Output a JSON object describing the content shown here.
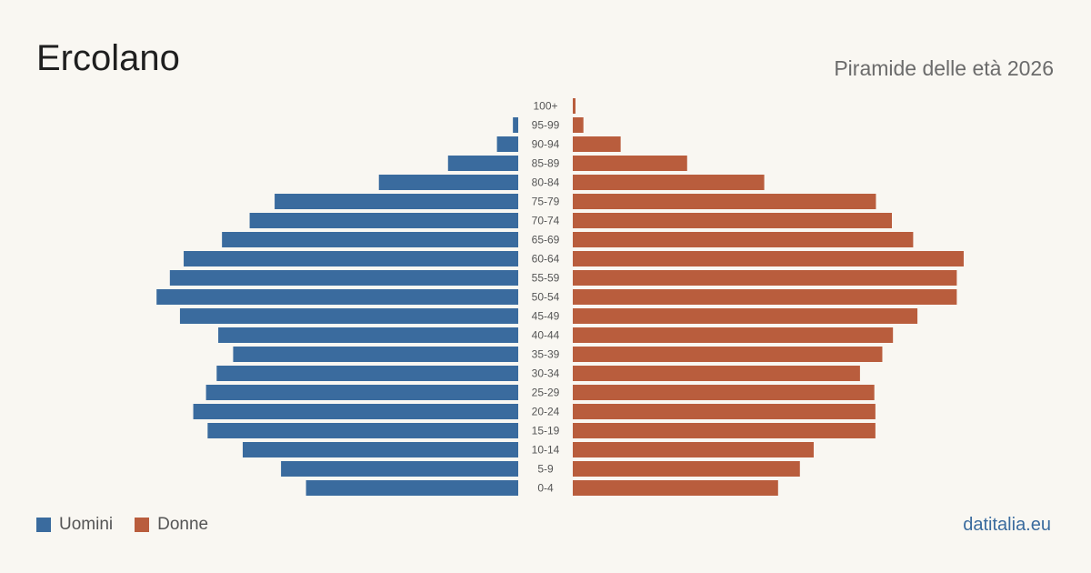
{
  "header": {
    "title": "Ercolano",
    "subtitle": "Piramide delle età 2026"
  },
  "legend": {
    "men_label": "Uomini",
    "women_label": "Donne"
  },
  "footer": {
    "source": "datitalia.eu"
  },
  "colors": {
    "men": "#3a6b9e",
    "women": "#b95d3d"
  },
  "chart_data": {
    "type": "bar",
    "orientation": "horizontal-pyramid",
    "categories": [
      "100+",
      "95-99",
      "90-94",
      "85-89",
      "80-84",
      "75-79",
      "70-74",
      "65-69",
      "60-64",
      "55-59",
      "50-54",
      "45-49",
      "40-44",
      "35-39",
      "30-34",
      "25-29",
      "20-24",
      "15-19",
      "10-14",
      "5-9",
      "0-4"
    ],
    "series": [
      {
        "name": "Uomini",
        "values": [
          0,
          10,
          40,
          132,
          262,
          458,
          505,
          557,
          629,
          655,
          680,
          636,
          564,
          536,
          567,
          587,
          611,
          584,
          518,
          446,
          399
        ]
      },
      {
        "name": "Donne",
        "values": [
          5,
          20,
          90,
          215,
          360,
          570,
          600,
          640,
          735,
          722,
          722,
          648,
          602,
          582,
          540,
          567,
          569,
          569,
          453,
          427,
          386
        ]
      }
    ],
    "grid": false,
    "legend_position": "bottom-left"
  }
}
